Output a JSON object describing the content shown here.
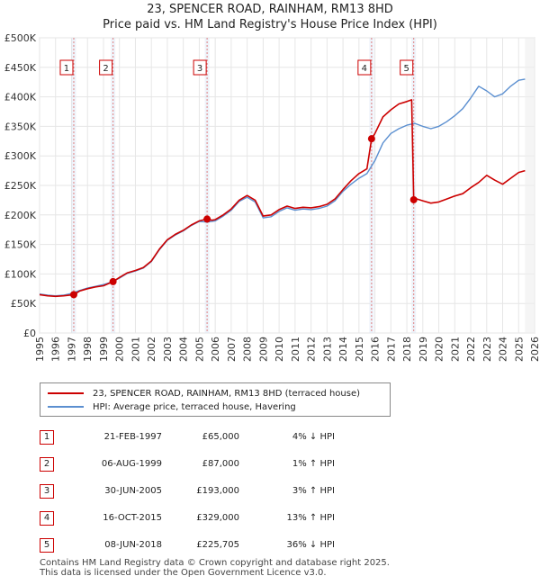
{
  "colors": {
    "property": "#cc0000",
    "hpi": "#5b8fd0",
    "grid": "#e6e6e6",
    "marker_box": "#cc0000",
    "vline": "#e08080"
  },
  "chart_data": {
    "type": "line",
    "title": "23, SPENCER ROAD, RAINHAM, RM13 8HD",
    "subtitle": "Price paid vs. HM Land Registry's House Price Index (HPI)",
    "xlabel": "",
    "ylabel": "",
    "xlim": [
      1995,
      2026
    ],
    "ylim": [
      0,
      500000
    ],
    "y_ticks": [
      0,
      50000,
      100000,
      150000,
      200000,
      250000,
      300000,
      350000,
      400000,
      450000,
      500000
    ],
    "y_tick_labels": [
      "£0",
      "£50K",
      "£100K",
      "£150K",
      "£200K",
      "£250K",
      "£300K",
      "£350K",
      "£400K",
      "£450K",
      "£500K"
    ],
    "x_ticks": [
      1995,
      1996,
      1997,
      1998,
      1999,
      2000,
      2001,
      2002,
      2003,
      2004,
      2005,
      2006,
      2007,
      2008,
      2009,
      2010,
      2011,
      2012,
      2013,
      2014,
      2015,
      2016,
      2017,
      2018,
      2019,
      2020,
      2021,
      2022,
      2023,
      2024,
      2025,
      2026
    ],
    "x_tick_labels": [
      "1995",
      "1996",
      "1997",
      "1998",
      "1999",
      "2000",
      "2001",
      "2002",
      "2003",
      "2004",
      "2005",
      "2006",
      "2007",
      "2008",
      "2009",
      "2010",
      "2011",
      "2012",
      "2013",
      "2014",
      "2015",
      "2016",
      "2017",
      "2018",
      "2019",
      "2020",
      "2021",
      "2022",
      "2023",
      "2024",
      "2025",
      "2026"
    ],
    "grid": true,
    "series": [
      {
        "name": "23, SPENCER ROAD, RAINHAM, RM13 8HD (terraced house)",
        "color": "#cc0000",
        "x": [
          1995.0,
          1995.5,
          1996.0,
          1996.5,
          1997.14,
          1997.5,
          1998.0,
          1998.5,
          1999.0,
          1999.6,
          2000.0,
          2000.5,
          2001.0,
          2001.5,
          2002.0,
          2002.5,
          2003.0,
          2003.5,
          2004.0,
          2004.5,
          2005.0,
          2005.49,
          2005.8,
          2006.0,
          2006.5,
          2007.0,
          2007.5,
          2008.0,
          2008.5,
          2009.0,
          2009.5,
          2010.0,
          2010.5,
          2011.0,
          2011.5,
          2012.0,
          2012.5,
          2013.0,
          2013.5,
          2014.0,
          2014.5,
          2015.0,
          2015.5,
          2015.79,
          2016.0,
          2016.5,
          2017.0,
          2017.5,
          2018.0,
          2018.3,
          2018.43,
          2018.5,
          2019.0,
          2019.5,
          2020.0,
          2020.5,
          2021.0,
          2021.5,
          2022.0,
          2022.5,
          2023.0,
          2023.5,
          2024.0,
          2024.5,
          2025.0,
          2025.4
        ],
        "y": [
          65000,
          63000,
          62000,
          63000,
          65000,
          71000,
          75000,
          78000,
          80000,
          87000,
          94000,
          102000,
          106000,
          111000,
          122000,
          142000,
          158000,
          167000,
          174000,
          183000,
          190000,
          193000,
          191000,
          192000,
          200000,
          210000,
          225000,
          233000,
          225000,
          198000,
          200000,
          209000,
          215000,
          211000,
          213000,
          212000,
          214000,
          218000,
          227000,
          243000,
          258000,
          270000,
          278000,
          329000,
          338000,
          366000,
          378000,
          388000,
          392000,
          395000,
          225705,
          228000,
          224000,
          220000,
          222000,
          227000,
          232000,
          236000,
          246000,
          255000,
          267000,
          259000,
          252000,
          262000,
          272000,
          275000
        ]
      },
      {
        "name": "HPI: Average price, terraced house, Havering",
        "color": "#5b8fd0",
        "x": [
          1995.0,
          1995.5,
          1996.0,
          1996.5,
          1997.0,
          1997.5,
          1998.0,
          1998.5,
          1999.0,
          1999.5,
          2000.0,
          2000.5,
          2001.0,
          2001.5,
          2002.0,
          2002.5,
          2003.0,
          2003.5,
          2004.0,
          2004.5,
          2005.0,
          2005.5,
          2006.0,
          2006.5,
          2007.0,
          2007.5,
          2008.0,
          2008.5,
          2009.0,
          2009.5,
          2010.0,
          2010.5,
          2011.0,
          2011.5,
          2012.0,
          2012.5,
          2013.0,
          2013.5,
          2014.0,
          2014.5,
          2015.0,
          2015.5,
          2016.0,
          2016.5,
          2017.0,
          2017.5,
          2018.0,
          2018.5,
          2019.0,
          2019.5,
          2020.0,
          2020.5,
          2021.0,
          2021.5,
          2022.0,
          2022.5,
          2023.0,
          2023.5,
          2024.0,
          2024.5,
          2025.0,
          2025.4
        ],
        "y": [
          66000,
          64000,
          63000,
          64000,
          67000,
          72000,
          76000,
          79000,
          82000,
          86000,
          93000,
          101000,
          105000,
          110000,
          121000,
          141000,
          157000,
          166000,
          173000,
          182000,
          189000,
          188000,
          190000,
          198000,
          208000,
          223000,
          230000,
          222000,
          195000,
          197000,
          206000,
          212000,
          208000,
          210000,
          209000,
          211000,
          215000,
          224000,
          240000,
          252000,
          262000,
          270000,
          292000,
          322000,
          338000,
          346000,
          352000,
          355000,
          350000,
          346000,
          350000,
          358000,
          368000,
          380000,
          398000,
          418000,
          410000,
          400000,
          405000,
          418000,
          428000,
          430000
        ]
      }
    ],
    "sales": [
      {
        "label": "1",
        "x": 1997.14,
        "y": 65000
      },
      {
        "label": "2",
        "x": 1999.6,
        "y": 87000
      },
      {
        "label": "3",
        "x": 2005.49,
        "y": 193000
      },
      {
        "label": "4",
        "x": 2015.79,
        "y": 329000
      },
      {
        "label": "5",
        "x": 2018.43,
        "y": 225705
      }
    ],
    "legend": "below-chart"
  },
  "legend": {
    "property_label": "23, SPENCER ROAD, RAINHAM, RM13 8HD (terraced house)",
    "hpi_label": "HPI: Average price, terraced house, Havering"
  },
  "table": [
    {
      "num": "1",
      "date": "21-FEB-1997",
      "price": "£65,000",
      "hpi": "4% ↓ HPI"
    },
    {
      "num": "2",
      "date": "06-AUG-1999",
      "price": "£87,000",
      "hpi": "1% ↑ HPI"
    },
    {
      "num": "3",
      "date": "30-JUN-2005",
      "price": "£193,000",
      "hpi": "3% ↑ HPI"
    },
    {
      "num": "4",
      "date": "16-OCT-2015",
      "price": "£329,000",
      "hpi": "13% ↑ HPI"
    },
    {
      "num": "5",
      "date": "08-JUN-2018",
      "price": "£225,705",
      "hpi": "36% ↓ HPI"
    }
  ],
  "footer": {
    "line1": "Contains HM Land Registry data © Crown copyright and database right 2025.",
    "line2": "This data is licensed under the Open Government Licence v3.0."
  }
}
